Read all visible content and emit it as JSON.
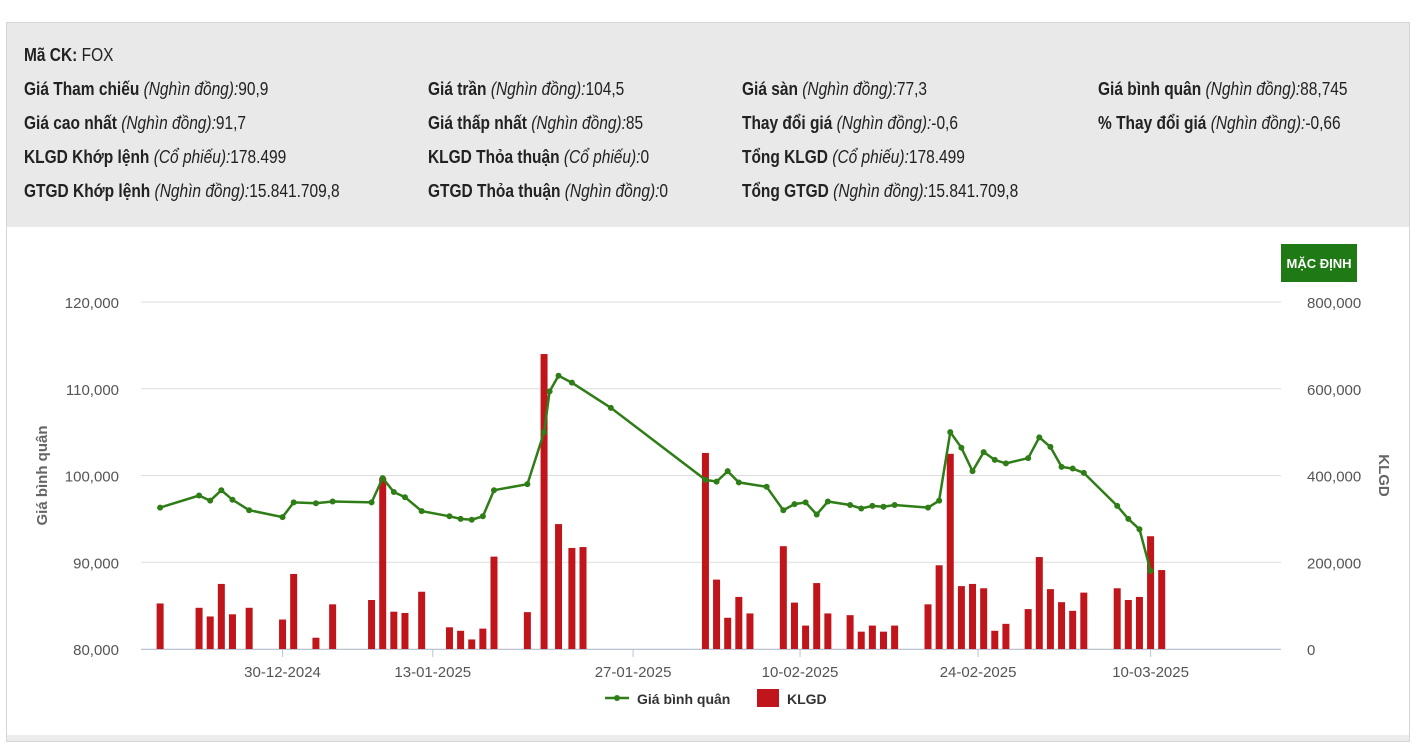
{
  "summary": {
    "code_label": "Mã CK:",
    "code_value": "FOX",
    "unit_thousand": "(Nghìn đồng):",
    "unit_shares": "(Cổ phiếu):",
    "items": {
      "ref_price": {
        "label": "Giá Tham chiếu",
        "value": "90,9"
      },
      "ceiling": {
        "label": "Giá trần",
        "value": "104,5"
      },
      "floor": {
        "label": "Giá sàn",
        "value": "77,3"
      },
      "avg_price": {
        "label": "Giá bình quân",
        "value": "88,745"
      },
      "high": {
        "label": "Giá cao nhất",
        "value": "91,7"
      },
      "low": {
        "label": "Giá thấp nhất",
        "value": "85"
      },
      "change": {
        "label": "Thay đổi giá",
        "value": "-0,6"
      },
      "pct_change": {
        "label": "% Thay đổi giá",
        "value": "-0,66"
      },
      "vol_match": {
        "label": "KLGD Khớp lệnh",
        "value": "178.499"
      },
      "vol_deal": {
        "label": "KLGD Thỏa thuận",
        "value": "0"
      },
      "vol_total": {
        "label": "Tổng KLGD",
        "value": "178.499"
      },
      "val_match": {
        "label": "GTGD Khớp lệnh",
        "value": "15.841.709,8"
      },
      "val_deal": {
        "label": "GTGD Thỏa thuận",
        "value": "0"
      },
      "val_total": {
        "label": "Tổng GTGD",
        "value": "15.841.709,8"
      }
    }
  },
  "default_button": "MẶC ĐỊNH",
  "colors": {
    "line": "#2e7d16",
    "bar": "#c0161b",
    "button": "#1f7a16",
    "grid": "#dddddd"
  },
  "chart_data": {
    "type": "bar+line",
    "x_range": [
      0,
      101
    ],
    "ylim_left": [
      80000,
      120000
    ],
    "ylim_right": [
      0,
      800000
    ],
    "left_ticks": [
      "80,000",
      "90,000",
      "100,000",
      "110,000",
      "120,000"
    ],
    "right_ticks": [
      "0",
      "200,000",
      "400,000",
      "600,000",
      "800,000"
    ],
    "ylabel_left": "Giá bình quân",
    "ylabel_right": "KLGD",
    "x_ticks": [
      {
        "x": 12,
        "label": "30-12-2024"
      },
      {
        "x": 25.5,
        "label": "13-01-2025"
      },
      {
        "x": 43.5,
        "label": "27-01-2025"
      },
      {
        "x": 58.5,
        "label": "10-02-2025"
      },
      {
        "x": 74.5,
        "label": "24-02-2025"
      },
      {
        "x": 90,
        "label": "10-03-2025"
      }
    ],
    "series": [
      {
        "name": "Giá bình quân",
        "type": "line",
        "x": [
          1,
          4.5,
          5.5,
          6.5,
          7.5,
          9,
          12,
          13,
          15,
          16.5,
          20,
          21,
          22,
          23,
          24.5,
          27,
          28,
          29,
          30,
          31,
          34,
          35.5,
          36,
          36.8,
          38,
          41.5,
          50,
          51,
          52,
          53,
          55.5,
          57,
          58,
          59,
          60,
          61,
          63,
          64,
          65,
          66,
          67,
          70,
          71,
          72,
          73,
          74,
          75,
          76,
          77,
          79,
          80,
          81,
          82,
          83,
          84,
          87,
          88,
          89,
          90
        ],
        "values": [
          96300,
          97700,
          97100,
          98300,
          97200,
          96000,
          95200,
          96900,
          96800,
          97000,
          96900,
          99700,
          98100,
          97500,
          95900,
          95300,
          95000,
          94900,
          95300,
          98300,
          99000,
          105000,
          109700,
          111500,
          110700,
          107800,
          99500,
          99300,
          100500,
          99200,
          98700,
          96000,
          96700,
          96900,
          95500,
          97000,
          96600,
          96200,
          96500,
          96400,
          96600,
          96300,
          97100,
          105000,
          103200,
          100500,
          102700,
          101800,
          101400,
          102000,
          104400,
          103300,
          101000,
          100800,
          100300,
          96500,
          95000,
          93800,
          89000
        ],
        "x_override_note": "x values in trading-day index"
      },
      {
        "name": "KLGD",
        "type": "bar",
        "x": [
          1,
          4.5,
          5.5,
          6.5,
          7.5,
          9,
          12,
          13,
          15,
          16.5,
          20,
          21,
          22,
          23,
          24.5,
          27,
          28,
          29,
          30,
          31,
          34,
          35.5,
          36.8,
          38,
          39,
          50,
          51,
          52,
          53,
          54,
          57,
          58,
          59,
          60,
          61,
          63,
          64,
          65,
          66,
          67,
          70,
          71,
          72,
          73,
          74,
          75,
          76,
          77,
          79,
          80,
          81,
          82,
          83,
          84,
          87,
          88,
          89,
          90,
          91,
          92
        ],
        "values": [
          105000,
          95000,
          75000,
          150000,
          80000,
          95000,
          68000,
          173000,
          26000,
          103000,
          113000,
          395000,
          86000,
          83000,
          132000,
          50000,
          42000,
          22000,
          47000,
          213000,
          85000,
          680000,
          288000,
          233000,
          235000,
          452000,
          160000,
          72000,
          120000,
          82000,
          237000,
          107000,
          54000,
          152000,
          82000,
          78000,
          40000,
          54000,
          40000,
          54000,
          103000,
          193000,
          450000,
          145000,
          150000,
          140000,
          42000,
          58000,
          92000,
          212000,
          138000,
          108000,
          88000,
          130000,
          140000,
          113000,
          120000,
          260000,
          182000,
          0
        ]
      }
    ]
  },
  "legend": {
    "line": "Giá bình quân",
    "bar": "KLGD"
  }
}
